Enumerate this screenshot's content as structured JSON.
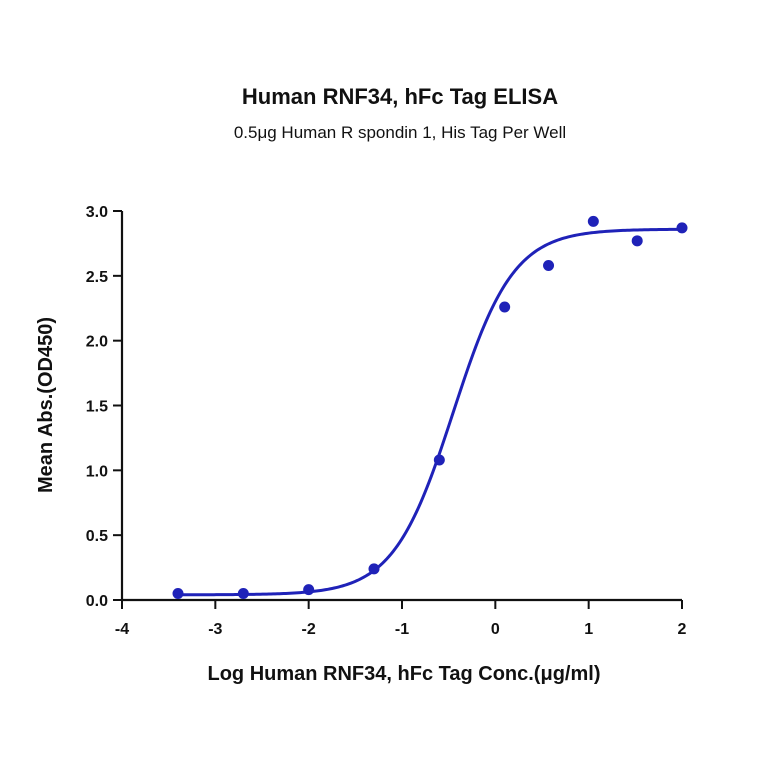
{
  "chart_data": {
    "type": "scatter",
    "title": "Human RNF34, hFc Tag ELISA",
    "subtitle": "0.5μg Human R spondin 1, His Tag Per Well",
    "xlabel": "Log Human RNF34, hFc Tag Conc.(μg/ml)",
    "ylabel": "Mean Abs.(OD450)",
    "xlim": [
      -4,
      2
    ],
    "ylim": [
      0,
      3
    ],
    "x_ticks": [
      "-4",
      "-3",
      "-2",
      "-1",
      "0",
      "1",
      "2"
    ],
    "y_ticks": [
      "0.0",
      "0.5",
      "1.0",
      "1.5",
      "2.0",
      "2.5",
      "3.0"
    ],
    "color": "#1f22b8",
    "grid": false,
    "series": [
      {
        "points": [
          {
            "x": -3.4,
            "y": 0.05
          },
          {
            "x": -2.7,
            "y": 0.05
          },
          {
            "x": -2.0,
            "y": 0.08
          },
          {
            "x": -1.3,
            "y": 0.24
          },
          {
            "x": -0.6,
            "y": 1.08
          },
          {
            "x": 0.1,
            "y": 2.26
          },
          {
            "x": 0.57,
            "y": 2.58
          },
          {
            "x": 1.05,
            "y": 2.92
          },
          {
            "x": 1.52,
            "y": 2.77
          },
          {
            "x": 2.0,
            "y": 2.87
          }
        ],
        "fit": {
          "model": "4PL",
          "bottom": 0.04,
          "top": 2.86,
          "log_ec50": -0.45,
          "hill": 1.35
        }
      }
    ]
  }
}
